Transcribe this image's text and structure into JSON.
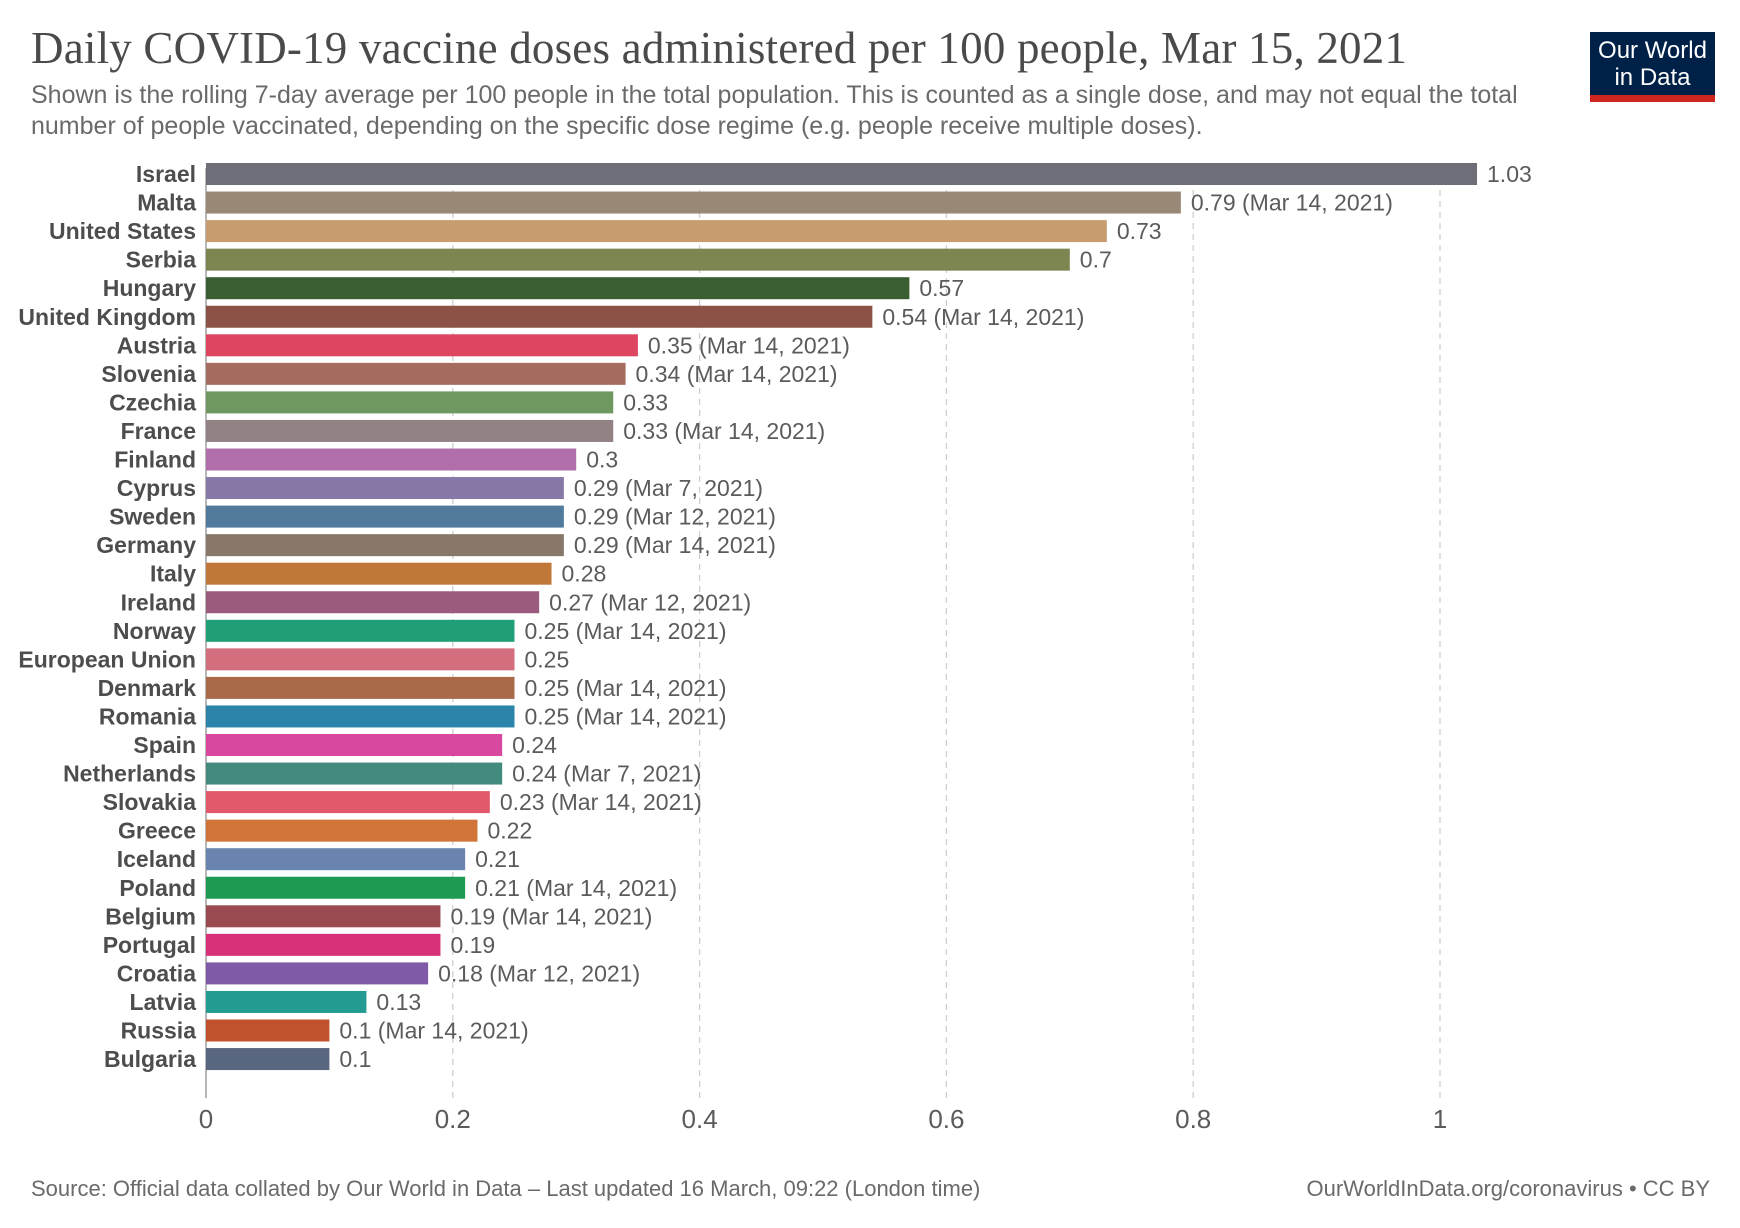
{
  "header": {
    "title": "Daily COVID-19 vaccine doses administered per 100 people, Mar 15, 2021",
    "subtitle": "Shown is the rolling 7-day average per 100 people in the total population. This is counted as a single dose, and may not equal the total number of people vaccinated, depending on the specific dose regime (e.g. people receive multiple doses)."
  },
  "logo": {
    "line1": "Our World",
    "line2": "in Data",
    "bg_color": "#002147",
    "accent_color": "#ce261e"
  },
  "footer": {
    "source": "Source: Official data collated by Our World in Data – Last updated 16 March, 09:22 (London time)",
    "credit": "OurWorldInData.org/coronavirus • CC BY"
  },
  "chart_data": {
    "type": "bar",
    "orientation": "horizontal",
    "title": "Daily COVID-19 vaccine doses administered per 100 people, Mar 15, 2021",
    "xlabel": "",
    "ylabel": "",
    "xlim": [
      0,
      1.03
    ],
    "xticks": [
      0,
      0.2,
      0.4,
      0.6,
      0.8,
      1
    ],
    "xtick_labels": [
      "0",
      "0.2",
      "0.4",
      "0.6",
      "0.8",
      "1"
    ],
    "grid": "vertical dashed",
    "bars": [
      {
        "category": "Israel",
        "value": 1.03,
        "label": "1.03",
        "color": "#6d6e78"
      },
      {
        "category": "Malta",
        "value": 0.79,
        "label": "0.79 (Mar 14, 2021)",
        "color": "#9a8876"
      },
      {
        "category": "United States",
        "value": 0.73,
        "label": "0.73",
        "color": "#c79c6e"
      },
      {
        "category": "Serbia",
        "value": 0.7,
        "label": "0.7",
        "color": "#7d8550"
      },
      {
        "category": "Hungary",
        "value": 0.57,
        "label": "0.57",
        "color": "#3a5e32"
      },
      {
        "category": "United Kingdom",
        "value": 0.54,
        "label": "0.54 (Mar 14, 2021)",
        "color": "#8c5246"
      },
      {
        "category": "Austria",
        "value": 0.35,
        "label": "0.35 (Mar 14, 2021)",
        "color": "#dd4561"
      },
      {
        "category": "Slovenia",
        "value": 0.34,
        "label": "0.34 (Mar 14, 2021)",
        "color": "#a66b5f"
      },
      {
        "category": "Czechia",
        "value": 0.33,
        "label": "0.33",
        "color": "#6f9860"
      },
      {
        "category": "France",
        "value": 0.33,
        "label": "0.33 (Mar 14, 2021)",
        "color": "#938283"
      },
      {
        "category": "Finland",
        "value": 0.3,
        "label": "0.3",
        "color": "#b06eab"
      },
      {
        "category": "Cyprus",
        "value": 0.29,
        "label": "0.29 (Mar 7, 2021)",
        "color": "#8878a7"
      },
      {
        "category": "Sweden",
        "value": 0.29,
        "label": "0.29 (Mar 12, 2021)",
        "color": "#517a9c"
      },
      {
        "category": "Germany",
        "value": 0.29,
        "label": "0.29 (Mar 14, 2021)",
        "color": "#87786a"
      },
      {
        "category": "Italy",
        "value": 0.28,
        "label": "0.28",
        "color": "#c07838"
      },
      {
        "category": "Ireland",
        "value": 0.27,
        "label": "0.27 (Mar 12, 2021)",
        "color": "#9a5b7c"
      },
      {
        "category": "Norway",
        "value": 0.25,
        "label": "0.25 (Mar 14, 2021)",
        "color": "#219e78"
      },
      {
        "category": "European Union",
        "value": 0.25,
        "label": "0.25",
        "color": "#d26e7d"
      },
      {
        "category": "Denmark",
        "value": 0.25,
        "label": "0.25 (Mar 14, 2021)",
        "color": "#a86a48"
      },
      {
        "category": "Romania",
        "value": 0.25,
        "label": "0.25 (Mar 14, 2021)",
        "color": "#2d84ab"
      },
      {
        "category": "Spain",
        "value": 0.24,
        "label": "0.24",
        "color": "#d8489e"
      },
      {
        "category": "Netherlands",
        "value": 0.24,
        "label": "0.24 (Mar 7, 2021)",
        "color": "#418a7c"
      },
      {
        "category": "Slovakia",
        "value": 0.23,
        "label": "0.23 (Mar 14, 2021)",
        "color": "#e1596b"
      },
      {
        "category": "Greece",
        "value": 0.22,
        "label": "0.22",
        "color": "#d07438"
      },
      {
        "category": "Iceland",
        "value": 0.21,
        "label": "0.21",
        "color": "#6a84b0"
      },
      {
        "category": "Poland",
        "value": 0.21,
        "label": "0.21 (Mar 14, 2021)",
        "color": "#1e9a52"
      },
      {
        "category": "Belgium",
        "value": 0.19,
        "label": "0.19 (Mar 14, 2021)",
        "color": "#9a4a51"
      },
      {
        "category": "Portugal",
        "value": 0.19,
        "label": "0.19",
        "color": "#d83079"
      },
      {
        "category": "Croatia",
        "value": 0.18,
        "label": "0.18 (Mar 12, 2021)",
        "color": "#7e5aa7"
      },
      {
        "category": "Latvia",
        "value": 0.13,
        "label": "0.13",
        "color": "#249c92"
      },
      {
        "category": "Russia",
        "value": 0.1,
        "label": "0.1 (Mar 14, 2021)",
        "color": "#c0532e"
      },
      {
        "category": "Bulgaria",
        "value": 0.1,
        "label": "0.1",
        "color": "#596680"
      }
    ]
  }
}
